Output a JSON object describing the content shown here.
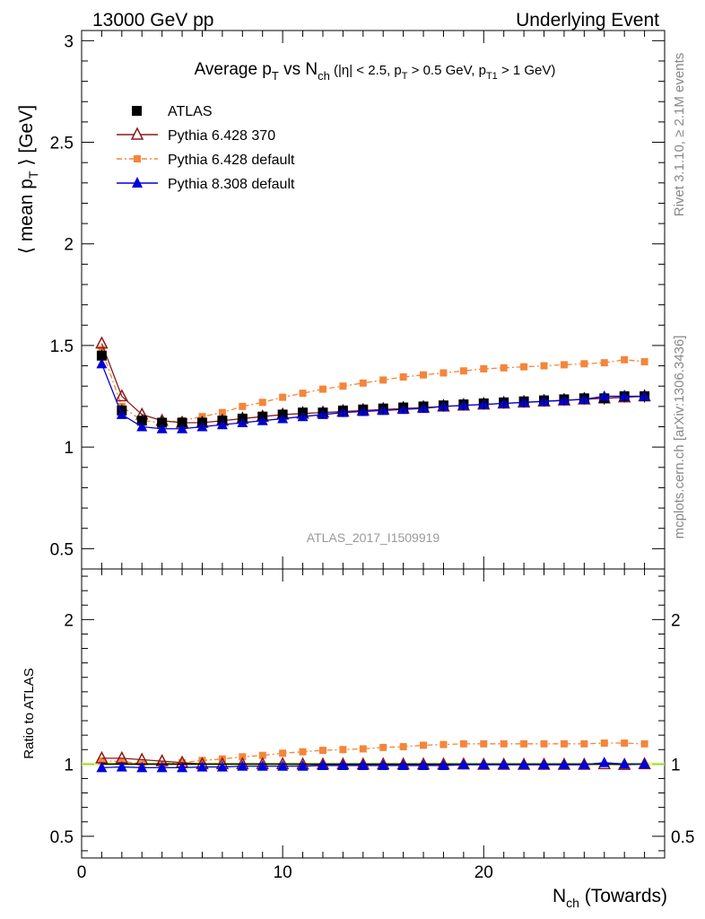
{
  "header": {
    "energy_label": "13000 GeV pp",
    "process_label": "Underlying Event"
  },
  "side_text": {
    "rivet": "Rivet 3.1.10, ≥ 2.1M events",
    "mcplots": "mcplots.cern.ch [arXiv:1306.3436]"
  },
  "analysis_label": "ATLAS_2017_I1509919",
  "colors": {
    "atlas": "#000000",
    "pythia6_370": "#8b1a1a",
    "pythia6_default": "#f5853a",
    "pythia8_default": "#0000dd",
    "ref_band": "#ccff66"
  },
  "chart_data": [
    {
      "type": "scatter",
      "panel": "main",
      "title_parts": {
        "pre": "Average p",
        "pre_sub": "T",
        "mid": " vs N",
        "mid_sub": "ch",
        "cond": " (|η| < 2.5, p",
        "cond_sub1": "T",
        "cond_mid": " > 0.5 GeV, p",
        "cond_sub2": "T1",
        "cond_end": " > 1 GeV)"
      },
      "ylabel_parts": {
        "pre": "⟨ mean p",
        "sub": "T",
        "post": " ⟩ [GeV]"
      },
      "xlim": [
        0,
        29
      ],
      "ylim": [
        0.4,
        3.05
      ],
      "y_ticks": [
        0.5,
        1,
        1.5,
        2,
        2.5,
        3
      ],
      "y_tick_labels": [
        "0.5",
        "1",
        "1.5",
        "2",
        "2.5",
        "3"
      ],
      "legend_position": "top-left",
      "x": [
        1,
        2,
        3,
        4,
        5,
        6,
        7,
        8,
        9,
        10,
        11,
        12,
        13,
        14,
        15,
        16,
        17,
        18,
        19,
        20,
        21,
        22,
        23,
        24,
        25,
        26,
        27,
        28
      ],
      "series": [
        {
          "name": "ATLAS",
          "marker": "square",
          "values": [
            1.45,
            1.18,
            1.13,
            1.12,
            1.12,
            1.12,
            1.13,
            1.14,
            1.15,
            1.16,
            1.17,
            1.17,
            1.18,
            1.185,
            1.19,
            1.195,
            1.2,
            1.205,
            1.21,
            1.215,
            1.22,
            1.225,
            1.23,
            1.235,
            1.24,
            1.24,
            1.25,
            1.25
          ]
        },
        {
          "name": "Pythia 6.428 370",
          "marker": "open-triangle",
          "values": [
            1.51,
            1.25,
            1.16,
            1.13,
            1.12,
            1.12,
            1.13,
            1.14,
            1.15,
            1.16,
            1.165,
            1.17,
            1.175,
            1.18,
            1.185,
            1.19,
            1.195,
            1.2,
            1.205,
            1.21,
            1.215,
            1.22,
            1.225,
            1.23,
            1.235,
            1.24,
            1.245,
            1.25
          ]
        },
        {
          "name": "Pythia 6.428 default",
          "marker": "small-square",
          "values": [
            1.48,
            1.2,
            1.13,
            1.12,
            1.13,
            1.15,
            1.17,
            1.2,
            1.22,
            1.245,
            1.265,
            1.285,
            1.3,
            1.315,
            1.33,
            1.345,
            1.355,
            1.365,
            1.375,
            1.385,
            1.39,
            1.395,
            1.4,
            1.405,
            1.41,
            1.415,
            1.43,
            1.42
          ]
        },
        {
          "name": "Pythia 8.308 default",
          "marker": "triangle",
          "values": [
            1.41,
            1.16,
            1.1,
            1.09,
            1.09,
            1.1,
            1.11,
            1.12,
            1.13,
            1.14,
            1.15,
            1.16,
            1.17,
            1.175,
            1.18,
            1.185,
            1.19,
            1.2,
            1.205,
            1.21,
            1.215,
            1.22,
            1.225,
            1.23,
            1.235,
            1.25,
            1.25,
            1.25
          ]
        }
      ]
    },
    {
      "type": "scatter",
      "panel": "ratio",
      "ylabel": "Ratio to ATLAS",
      "xlabel_parts": {
        "pre": "N",
        "sub": "ch",
        "post": " (Towards)"
      },
      "xlim": [
        0,
        29
      ],
      "ylim": [
        0.35,
        2.35
      ],
      "x_ticks": [
        0,
        10,
        20
      ],
      "x_tick_labels": [
        "0",
        "10",
        "20"
      ],
      "y_ticks": [
        0.5,
        1,
        2
      ],
      "y_tick_labels": [
        "0.5",
        "1",
        "2"
      ],
      "x": [
        1,
        2,
        3,
        4,
        5,
        6,
        7,
        8,
        9,
        10,
        11,
        12,
        13,
        14,
        15,
        16,
        17,
        18,
        19,
        20,
        21,
        22,
        23,
        24,
        25,
        26,
        27,
        28
      ],
      "series": [
        {
          "name": "ATLAS",
          "values": [
            1,
            1,
            1,
            1,
            1,
            1,
            1,
            1,
            1,
            1,
            1,
            1,
            1,
            1,
            1,
            1,
            1,
            1,
            1,
            1,
            1,
            1,
            1,
            1,
            1,
            1,
            1,
            1
          ]
        },
        {
          "name": "Pythia 6.428 370",
          "values": [
            1.04,
            1.04,
            1.03,
            1.02,
            1.01,
            1.0,
            1.0,
            1.0,
            1.0,
            1.0,
            0.998,
            0.998,
            0.998,
            0.998,
            0.998,
            0.998,
            0.998,
            0.998,
            0.998,
            0.996,
            0.996,
            0.996,
            0.996,
            0.996,
            0.996,
            1.0,
            0.995,
            1.0
          ]
        },
        {
          "name": "Pythia 6.428 default",
          "values": [
            1.02,
            1.02,
            1.0,
            1.0,
            1.01,
            1.025,
            1.035,
            1.05,
            1.06,
            1.075,
            1.085,
            1.095,
            1.1,
            1.105,
            1.115,
            1.12,
            1.13,
            1.135,
            1.14,
            1.14,
            1.14,
            1.14,
            1.14,
            1.14,
            1.14,
            1.145,
            1.145,
            1.14
          ]
        },
        {
          "name": "Pythia 8.308 default",
          "values": [
            0.975,
            0.98,
            0.975,
            0.975,
            0.975,
            0.98,
            0.98,
            0.985,
            0.985,
            0.985,
            0.985,
            0.99,
            0.99,
            0.99,
            0.99,
            0.99,
            0.99,
            0.99,
            0.995,
            0.995,
            0.995,
            0.995,
            0.995,
            0.995,
            0.995,
            1.01,
            1.0,
            1.0
          ]
        }
      ]
    }
  ]
}
